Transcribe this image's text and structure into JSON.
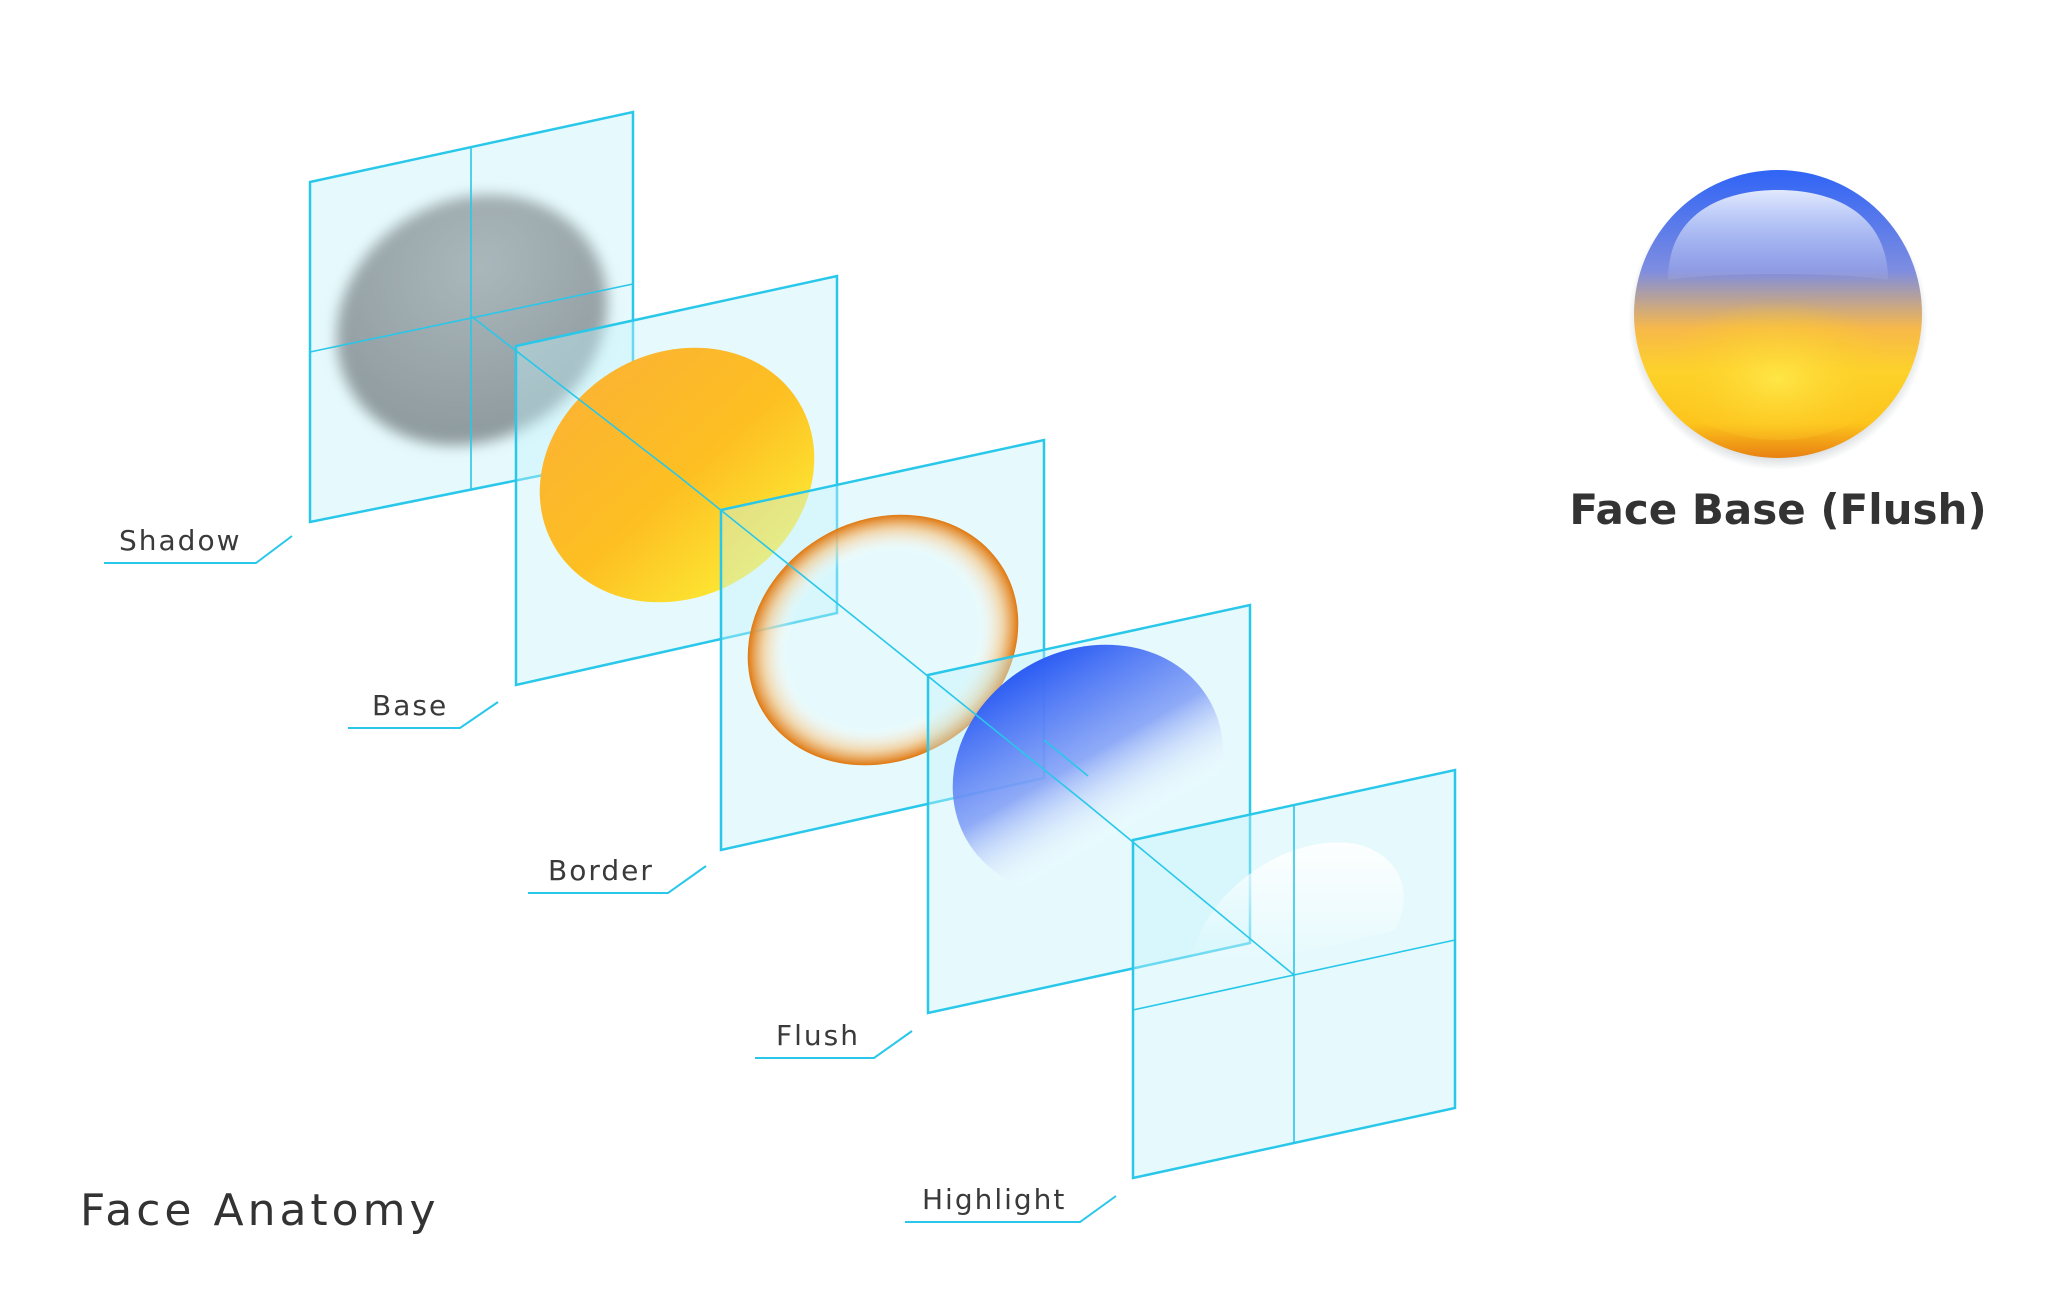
{
  "title": "Face Anatomy",
  "preview": {
    "caption": "Face Base (Flush)"
  },
  "layers": [
    {
      "id": "shadow",
      "label": "Shadow"
    },
    {
      "id": "base",
      "label": "Base"
    },
    {
      "id": "border",
      "label": "Border"
    },
    {
      "id": "flush",
      "label": "Flush"
    },
    {
      "id": "highlight",
      "label": "Highlight"
    }
  ],
  "colors": {
    "plane_stroke": "#29c7ea",
    "plane_fill": "#c4f2fb",
    "shadow": "#8c9a9f",
    "base_top": "#fcb532",
    "base_bottom": "#fde834",
    "border": "#e07a10",
    "flush": "#2f63f5",
    "text": "#333333"
  }
}
